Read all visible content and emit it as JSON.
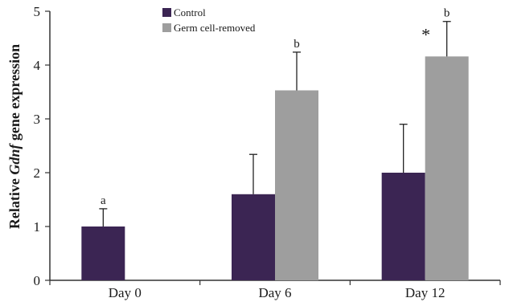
{
  "chart_data": {
    "type": "bar",
    "categories": [
      "Day 0",
      "Day 6",
      "Day 12"
    ],
    "series": [
      {
        "name": "Control",
        "color": "#3b2553",
        "values": [
          1.0,
          1.6,
          2.0
        ],
        "errors": [
          0.33,
          0.74,
          0.9
        ],
        "annotations": [
          "a",
          "",
          ""
        ]
      },
      {
        "name": "Germ cell-removed",
        "color": "#9e9e9e",
        "values": [
          null,
          3.53,
          4.16
        ],
        "errors": [
          null,
          0.71,
          0.65
        ],
        "annotations": [
          "",
          "b",
          "b"
        ]
      }
    ],
    "significance_marks": [
      {
        "category": "Day 12",
        "series": "Germ cell-removed",
        "mark": "*"
      }
    ],
    "ylabel_parts": [
      "Relative ",
      "Gdnf",
      " gene expression"
    ],
    "ylim": [
      0,
      5
    ],
    "yticks": [
      "0",
      "1",
      "2",
      "3",
      "4",
      "5"
    ],
    "legend_position": "top-center",
    "grid": false
  }
}
